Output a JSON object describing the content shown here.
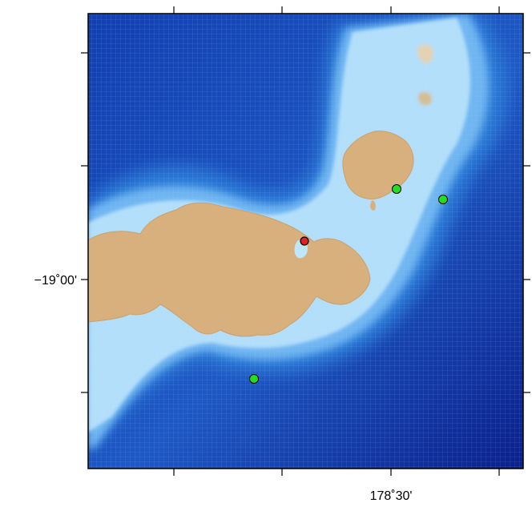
{
  "map": {
    "axis_labels": {
      "left_latitude": "−19˚00'",
      "bottom_longitude": "178˚30'"
    },
    "colors": {
      "deep_ocean": "#0a1f8f",
      "mid_ocean": "#1f66cc",
      "shallow_ocean": "#6fb6f2",
      "reef_shelf": "#bfe6fb",
      "land": "#d8b07e",
      "marker_green": "#22dd22",
      "marker_red": "#dd2222",
      "frame": "#000000"
    },
    "markers": [
      {
        "type": "station",
        "color": "green"
      },
      {
        "type": "station",
        "color": "green"
      },
      {
        "type": "station",
        "color": "green"
      },
      {
        "type": "station",
        "color": "red"
      }
    ]
  }
}
